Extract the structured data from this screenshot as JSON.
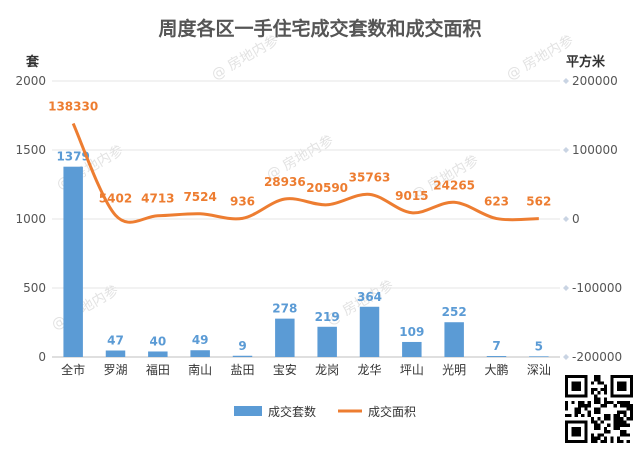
{
  "chart_data": {
    "type": "bar",
    "title": "周度各区一手住宅成交套数和成交面积",
    "categories": [
      "全市",
      "罗湖",
      "福田",
      "南山",
      "盐田",
      "宝安",
      "龙岗",
      "龙华",
      "坪山",
      "光明",
      "大鹏",
      "深汕"
    ],
    "series": [
      {
        "name": "成交套数",
        "type": "bar",
        "axis": "left",
        "color": "#5b9bd5",
        "values": [
          1379,
          47,
          40,
          49,
          9,
          278,
          219,
          364,
          109,
          252,
          7,
          5
        ]
      },
      {
        "name": "成交面积",
        "type": "line",
        "axis": "right",
        "color": "#ed7d31",
        "values": [
          138330,
          5402,
          4713,
          7524,
          936,
          28936,
          20590,
          35763,
          9015,
          24265,
          623,
          562
        ]
      }
    ],
    "ylabel": "套",
    "y2label": "平方米",
    "ylim": [
      0,
      2000
    ],
    "yticks": [
      0,
      500,
      1000,
      1500,
      2000
    ],
    "y2lim": [
      -200000,
      200000
    ],
    "y2ticks": [
      -200000,
      -100000,
      0,
      100000,
      200000
    ],
    "grid": true,
    "legend": "bottom"
  },
  "watermark": "@ 房地内参",
  "qr_icon": "qr-code-icon"
}
